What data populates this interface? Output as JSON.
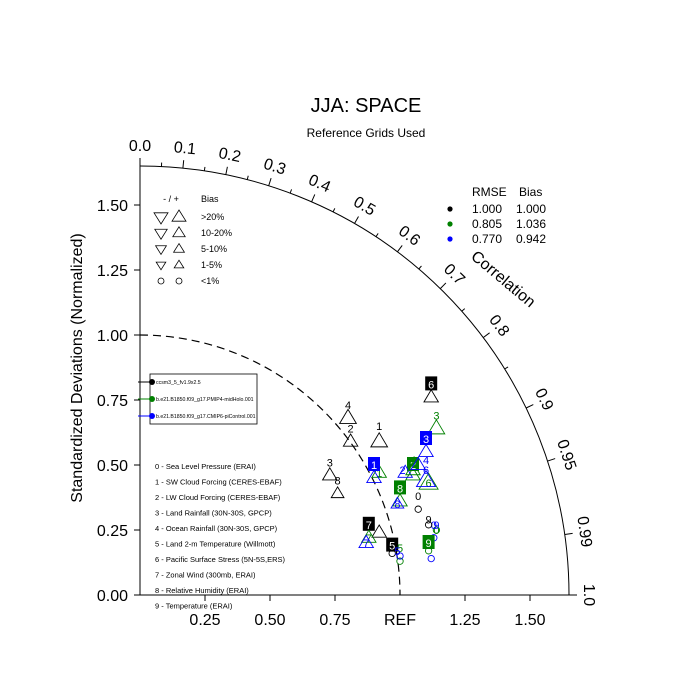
{
  "chart_data": {
    "type": "scatter",
    "title": "JJA: SPACE",
    "subtitle": "Reference Grids Used",
    "ylabel": "Standardized Deviations (Normalized)",
    "arc_label": "Correlation",
    "ref_label": "REF",
    "x_ticks": [
      "0.25",
      "0.50",
      "0.75",
      "1.25",
      "1.50"
    ],
    "x_tick_values": [
      0.25,
      0.5,
      0.75,
      1.25,
      1.5
    ],
    "y_ticks": [
      "0.00",
      "0.25",
      "0.50",
      "0.75",
      "1.00",
      "1.25",
      "1.50"
    ],
    "y_tick_values": [
      0.0,
      0.25,
      0.5,
      0.75,
      1.0,
      1.25,
      1.5
    ],
    "corr_labels": [
      "0.0",
      "0.1",
      "0.2",
      "0.3",
      "0.4",
      "0.5",
      "0.6",
      "0.7",
      "0.8",
      "0.9",
      "0.95",
      "0.99",
      "1.0"
    ],
    "corr_values": [
      0.0,
      0.1,
      0.2,
      0.3,
      0.4,
      0.5,
      0.6,
      0.7,
      0.8,
      0.9,
      0.95,
      0.99,
      1.0
    ],
    "std_max": 1.65,
    "reference_std": 1.0,
    "bias_legend": {
      "header_sign": "- / +",
      "header_bias": "Bias",
      "rows": [
        {
          "label": ">20%",
          "size": 1.0
        },
        {
          "label": "10-20%",
          "size": 0.8
        },
        {
          "label": "5-10%",
          "size": 0.6
        },
        {
          "label": "1-5%",
          "size": 0.45
        },
        {
          "label": "<1%",
          "size": 0
        }
      ]
    },
    "summary_table": {
      "headers": [
        "RMSE",
        "Bias"
      ],
      "rows": [
        {
          "color": "#000000",
          "rmse": "1.000",
          "bias": "1.000"
        },
        {
          "color": "#008000",
          "rmse": "0.805",
          "bias": "1.036"
        },
        {
          "color": "#0000ff",
          "rmse": "0.770",
          "bias": "0.942"
        }
      ]
    },
    "series": [
      {
        "name": "ccsm3_5_fv1.9x2.5",
        "color": "#000000"
      },
      {
        "name": "b.e21.B1850.f09_g17.PMIP4-midHolo.001",
        "color": "#008000"
      },
      {
        "name": "b.e21.B1850.f09_g17.CMIP6-piControl.001",
        "color": "#0000ff"
      }
    ],
    "variables": [
      "0 - Sea Level Pressure (ERAI)",
      "1 - SW Cloud Forcing (CERES-EBAF)",
      "2 - LW Cloud Forcing (CERES-EBAF)",
      "3 - Land Rainfall (30N-30S, GPCP)",
      "4 - Ocean Rainfall (30N-30S, GPCP)",
      "5 - Land 2-m Temperature (Willmott)",
      "6 - Pacific Surface Stress (5N-5S,ERS)",
      "7 - Zonal Wind (300mb, ERAI)",
      "8 - Relative Humidity (ERAI)",
      "9 - Temperature (ERAI)"
    ],
    "points": [
      {
        "var": "0",
        "series": 0,
        "x": 1.07,
        "y": 0.33,
        "marker": "circle",
        "boxed": false,
        "lx": 1.07,
        "ly": 0.38
      },
      {
        "var": "0",
        "series": 1,
        "x": 1.14,
        "y": 0.25,
        "marker": "circle",
        "boxed": false,
        "lx": 1.14,
        "ly": 0.25
      },
      {
        "var": "0",
        "series": 2,
        "x": 1.13,
        "y": 0.22,
        "marker": "circle",
        "boxed": false,
        "lx": 1.13,
        "ly": 0.27
      },
      {
        "var": "1",
        "series": 0,
        "x": 0.92,
        "y": 0.59,
        "marker": "up",
        "size": 0.8,
        "boxed": false,
        "lx": 0.92,
        "ly": 0.65
      },
      {
        "var": "1",
        "series": 1,
        "x": 0.92,
        "y": 0.47,
        "marker": "up",
        "size": 0.6,
        "boxed": false,
        "lx": 0.92,
        "ly": 0.47
      },
      {
        "var": "1",
        "series": 2,
        "x": 0.9,
        "y": 0.45,
        "marker": "up",
        "size": 0.6,
        "boxed": true,
        "lx": 0.9,
        "ly": 0.5
      },
      {
        "var": "2",
        "series": 0,
        "x": 0.81,
        "y": 0.59,
        "marker": "up",
        "size": 0.6,
        "boxed": false,
        "lx": 0.81,
        "ly": 0.64
      },
      {
        "var": "2",
        "series": 1,
        "x": 1.05,
        "y": 0.46,
        "marker": "up",
        "size": 0.6,
        "boxed": true,
        "lx": 1.05,
        "ly": 0.5
      },
      {
        "var": "2",
        "series": 2,
        "x": 1.02,
        "y": 0.47,
        "marker": "up",
        "size": 0.6,
        "boxed": false,
        "lx": 1.01,
        "ly": 0.48
      },
      {
        "var": "3",
        "series": 0,
        "x": 0.73,
        "y": 0.46,
        "marker": "up",
        "size": 0.6,
        "boxed": false,
        "lx": 0.73,
        "ly": 0.51
      },
      {
        "var": "3",
        "series": 1,
        "x": 1.14,
        "y": 0.64,
        "marker": "up",
        "size": 0.8,
        "boxed": false,
        "lx": 1.14,
        "ly": 0.69
      },
      {
        "var": "3",
        "series": 2,
        "x": 1.1,
        "y": 0.55,
        "marker": "up",
        "size": 0.6,
        "boxed": true,
        "lx": 1.1,
        "ly": 0.6
      },
      {
        "var": "4",
        "series": 0,
        "x": 0.8,
        "y": 0.68,
        "marker": "up",
        "size": 0.8,
        "boxed": false,
        "lx": 0.8,
        "ly": 0.73
      },
      {
        "var": "4",
        "series": 1,
        "x": 1.05,
        "y": 0.48,
        "marker": "up",
        "size": 0.6,
        "boxed": false,
        "lx": 1.05,
        "ly": 0.52
      },
      {
        "var": "4",
        "series": 2,
        "x": 1.07,
        "y": 0.5,
        "marker": "up",
        "size": 0.6,
        "boxed": false,
        "lx": 1.1,
        "ly": 0.52
      },
      {
        "var": "5",
        "series": 0,
        "x": 0.97,
        "y": 0.16,
        "marker": "circle",
        "boxed": true,
        "lx": 0.97,
        "ly": 0.19
      },
      {
        "var": "5",
        "series": 1,
        "x": 1.0,
        "y": 0.13,
        "marker": "circle",
        "boxed": false,
        "lx": 1.0,
        "ly": 0.18
      },
      {
        "var": "5",
        "series": 2,
        "x": 1.0,
        "y": 0.15,
        "marker": "circle",
        "boxed": false,
        "lx": 0.99,
        "ly": 0.17
      },
      {
        "var": "6",
        "series": 0,
        "x": 1.12,
        "y": 0.76,
        "marker": "up",
        "size": 0.6,
        "boxed": true,
        "lx": 1.12,
        "ly": 0.81
      },
      {
        "var": "6",
        "series": 1,
        "x": 1.11,
        "y": 0.43,
        "marker": "up",
        "size": 1.0,
        "boxed": false,
        "lx": 1.11,
        "ly": 0.43
      },
      {
        "var": "6",
        "series": 2,
        "x": 1.1,
        "y": 0.44,
        "marker": "up",
        "size": 1.0,
        "boxed": false,
        "lx": 1.1,
        "ly": 0.48
      },
      {
        "var": "7",
        "series": 0,
        "x": 0.92,
        "y": 0.24,
        "marker": "up",
        "size": 0.6,
        "boxed": true,
        "lx": 0.88,
        "ly": 0.27
      },
      {
        "var": "7",
        "series": 1,
        "x": 0.88,
        "y": 0.22,
        "marker": "up",
        "size": 0.6,
        "boxed": false,
        "lx": 0.88,
        "ly": 0.22
      },
      {
        "var": "7",
        "series": 2,
        "x": 0.87,
        "y": 0.2,
        "marker": "up",
        "size": 0.6,
        "boxed": false,
        "lx": 0.87,
        "ly": 0.2
      },
      {
        "var": "8",
        "series": 0,
        "x": 0.76,
        "y": 0.39,
        "marker": "up",
        "size": 0.45,
        "boxed": false,
        "lx": 0.76,
        "ly": 0.44
      },
      {
        "var": "8",
        "series": 1,
        "x": 1.0,
        "y": 0.36,
        "marker": "up",
        "size": 0.6,
        "boxed": true,
        "lx": 1.0,
        "ly": 0.41
      },
      {
        "var": "8",
        "series": 2,
        "x": 0.99,
        "y": 0.35,
        "marker": "up",
        "size": 0.45,
        "boxed": false,
        "lx": 0.99,
        "ly": 0.35
      },
      {
        "var": "9",
        "series": 0,
        "x": 1.11,
        "y": 0.27,
        "marker": "circle",
        "boxed": false,
        "lx": 1.11,
        "ly": 0.29
      },
      {
        "var": "9",
        "series": 1,
        "x": 1.11,
        "y": 0.17,
        "marker": "circle",
        "boxed": true,
        "lx": 1.11,
        "ly": 0.2
      },
      {
        "var": "9",
        "series": 2,
        "x": 1.12,
        "y": 0.14,
        "marker": "circle",
        "boxed": false,
        "lx": 1.14,
        "ly": 0.27
      }
    ]
  }
}
